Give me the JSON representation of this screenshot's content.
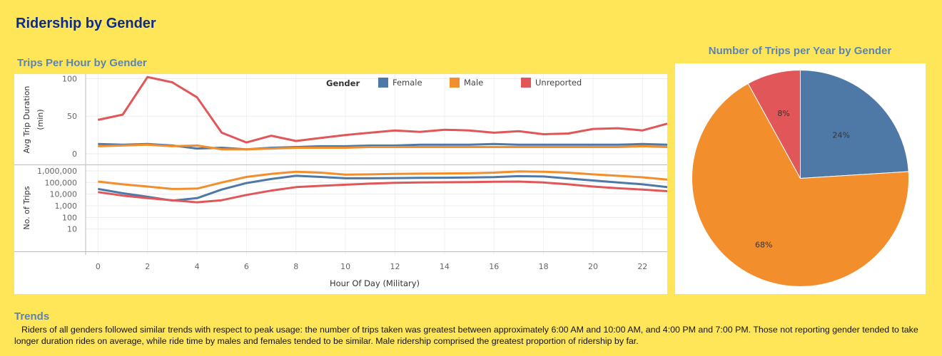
{
  "page": {
    "title": "Ridership by Gender"
  },
  "colors": {
    "background": "#FFE659",
    "title": "#0D2B8A",
    "subtitle": "#5B83B3",
    "female": "#4E79A7",
    "male": "#F28E2B",
    "unreported": "#E15759"
  },
  "trends": {
    "heading": "Trends",
    "text": "Riders of all genders followed similar trends with respect to peak usage:  the number of trips taken was greatest between approximately 6:00 AM and 10:00 AM, and 4:00 PM and 7:00 PM. Those not reporting gender tended to take longer duration rides on average, while ride time by males and females tended to be similar.  Male ridership comprised the greatest proportion of ridership by far."
  },
  "chart_data": [
    {
      "type": "line",
      "title": "Trips Per Hour by Gender",
      "xlabel": "Hour Of Day (Military)",
      "x": [
        0,
        1,
        2,
        3,
        4,
        5,
        6,
        7,
        8,
        9,
        10,
        11,
        12,
        13,
        14,
        15,
        16,
        17,
        18,
        19,
        20,
        21,
        22,
        23
      ],
      "xticks": [
        "0",
        "2",
        "4",
        "6",
        "8",
        "10",
        "12",
        "14",
        "16",
        "18",
        "20",
        "22"
      ],
      "legend": {
        "title": "Gender",
        "position": "top",
        "entries": [
          "Female",
          "Male",
          "Unreported"
        ]
      },
      "panels": [
        {
          "ylabel": "Avg Trip Duration (min)",
          "scale": "linear",
          "ylim": [
            0,
            105
          ],
          "yticks": [
            "0",
            "50",
            "100"
          ],
          "series": [
            {
              "name": "Female",
              "values": [
                13,
                12,
                13,
                11,
                7,
                8,
                6,
                8,
                9,
                10,
                10,
                11,
                11,
                12,
                12,
                12,
                13,
                12,
                12,
                12,
                12,
                12,
                13,
                12
              ]
            },
            {
              "name": "Male",
              "values": [
                10,
                11,
                12,
                10,
                11,
                6,
                6,
                7,
                8,
                8,
                8,
                9,
                9,
                9,
                9,
                9,
                9,
                9,
                9,
                9,
                9,
                9,
                10,
                9
              ]
            },
            {
              "name": "Unreported",
              "values": [
                45,
                52,
                102,
                95,
                75,
                28,
                15,
                24,
                17,
                21,
                25,
                28,
                31,
                29,
                32,
                31,
                28,
                30,
                26,
                27,
                33,
                34,
                31,
                40
              ]
            }
          ]
        },
        {
          "ylabel": "No. of Trips",
          "scale": "log",
          "ylim": [
            1,
            1000000
          ],
          "yticks": [
            "10",
            "100",
            "1,000",
            "10,000",
            "100,000",
            "1,000,000"
          ],
          "series": [
            {
              "name": "Female",
              "values": [
                28000,
                12000,
                6000,
                2800,
                4500,
                25000,
                90000,
                200000,
                380000,
                300000,
                230000,
                230000,
                240000,
                250000,
                260000,
                270000,
                290000,
                350000,
                330000,
                220000,
                150000,
                100000,
                70000,
                40000
              ]
            },
            {
              "name": "Male",
              "values": [
                120000,
                70000,
                45000,
                28000,
                30000,
                100000,
                300000,
                550000,
                850000,
                700000,
                480000,
                500000,
                550000,
                580000,
                600000,
                620000,
                700000,
                900000,
                850000,
                700000,
                500000,
                380000,
                280000,
                180000
              ]
            },
            {
              "name": "Unreported",
              "values": [
                15000,
                7500,
                4500,
                3000,
                2000,
                3000,
                8500,
                20000,
                40000,
                52000,
                65000,
                80000,
                95000,
                100000,
                105000,
                110000,
                115000,
                120000,
                100000,
                70000,
                45000,
                32000,
                25000,
                18000
              ]
            }
          ]
        }
      ]
    },
    {
      "type": "pie",
      "title": "Number of Trips per Year by Gender",
      "slices": [
        {
          "name": "Female",
          "value": 24,
          "label": "24%"
        },
        {
          "name": "Male",
          "value": 68,
          "label": "68%"
        },
        {
          "name": "Unreported",
          "value": 8,
          "label": "8%"
        }
      ]
    }
  ]
}
